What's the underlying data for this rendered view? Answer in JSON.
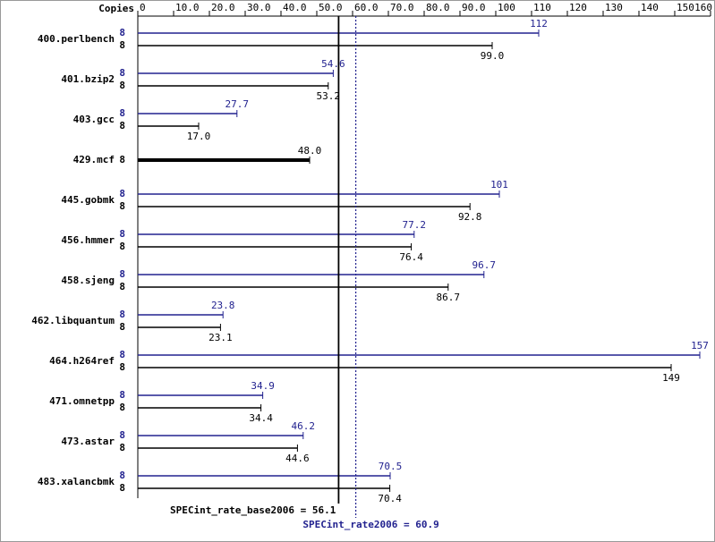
{
  "chart_data": {
    "type": "hbar",
    "copies_label": "Copies",
    "categories": [
      "400.perlbench",
      "401.bzip2",
      "403.gcc",
      "429.mcf",
      "445.gobmk",
      "456.hmmer",
      "458.sjeng",
      "462.libquantum",
      "464.h264ref",
      "471.omnetpp",
      "473.astar",
      "483.xalancbmk"
    ],
    "series": [
      {
        "color": "#22228f",
        "copies": [
          8,
          8,
          8,
          null,
          8,
          8,
          8,
          8,
          8,
          8,
          8,
          8
        ],
        "values": [
          112,
          54.6,
          27.7,
          null,
          101,
          77.2,
          96.7,
          23.8,
          157,
          34.9,
          46.2,
          70.5
        ],
        "value_labels": [
          "112",
          "54.6",
          "27.7",
          null,
          "101",
          "77.2",
          "96.7",
          "23.8",
          "157",
          "34.9",
          "46.2",
          "70.5"
        ]
      },
      {
        "color": "#000000",
        "copies": [
          8,
          8,
          8,
          8,
          8,
          8,
          8,
          8,
          8,
          8,
          8,
          8
        ],
        "values": [
          99.0,
          53.2,
          17.0,
          48.0,
          92.8,
          76.4,
          86.7,
          23.1,
          149,
          34.4,
          44.6,
          70.4
        ],
        "value_labels": [
          "99.0",
          "53.2",
          "17.0",
          "48.0",
          "92.8",
          "76.4",
          "86.7",
          "23.1",
          "149",
          "34.4",
          "44.6",
          "70.4"
        ]
      }
    ],
    "xlim": [
      0,
      160
    ],
    "xticks": [
      0,
      {
        "value": 10,
        "label": "10.0"
      },
      {
        "value": 20,
        "label": "20.0"
      },
      {
        "value": 30,
        "label": "30.0"
      },
      {
        "value": 40,
        "label": "40.0"
      },
      {
        "value": 50,
        "label": "50.0"
      },
      {
        "value": 60,
        "label": "60.0"
      },
      {
        "value": 70,
        "label": "70.0"
      },
      {
        "value": 80,
        "label": "80.0"
      },
      {
        "value": 90,
        "label": "90.0"
      },
      100,
      110,
      120,
      130,
      140,
      150,
      160
    ],
    "reference_lines": [
      {
        "label": "SPECint_rate_base2006 = 56.1",
        "value": 56.1,
        "color": "#000000",
        "style": "solid"
      },
      {
        "label": "SPECint_rate2006 = 60.9",
        "value": 60.9,
        "color": "#22228f",
        "style": "dotted"
      }
    ]
  }
}
